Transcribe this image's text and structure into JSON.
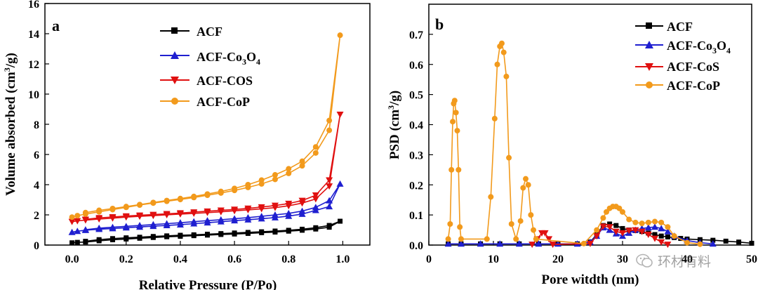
{
  "chart_data": [
    {
      "type": "line",
      "panel_label": "a",
      "xlabel": "Relative Pressure (P/Po)",
      "ylabel": "Volume absorbed (cm³/g)",
      "xlim": [
        -0.1,
        1.1
      ],
      "ylim": [
        0,
        16
      ],
      "xticks": [
        0.0,
        0.2,
        0.4,
        0.6,
        0.8,
        1.0
      ],
      "xtick_labels": [
        "0.0",
        "0.2",
        "0.4",
        "0.6",
        "0.8",
        "1.0"
      ],
      "yticks": [
        0,
        2,
        4,
        6,
        8,
        10,
        12,
        14,
        16
      ],
      "ytick_labels": [
        "0",
        "2",
        "4",
        "6",
        "8",
        "10",
        "12",
        "14",
        "16"
      ],
      "legend": [
        "ACF",
        "ACF-Co₃O₄",
        "ACF-COS",
        "ACF-CoP"
      ],
      "series": [
        {
          "name": "ACF",
          "marker": "square",
          "color": "#000000",
          "x": [
            0.0,
            0.02,
            0.05,
            0.1,
            0.15,
            0.2,
            0.25,
            0.3,
            0.35,
            0.4,
            0.45,
            0.5,
            0.55,
            0.6,
            0.65,
            0.7,
            0.75,
            0.8,
            0.85,
            0.9,
            0.95,
            0.99,
            0.95,
            0.9,
            0.85,
            0.8,
            0.75,
            0.7,
            0.65,
            0.6,
            0.55,
            0.5,
            0.45,
            0.4,
            0.35,
            0.3,
            0.25,
            0.2,
            0.15,
            0.1,
            0.05
          ],
          "y": [
            0.15,
            0.18,
            0.2,
            0.28,
            0.35,
            0.4,
            0.45,
            0.5,
            0.55,
            0.58,
            0.62,
            0.66,
            0.7,
            0.73,
            0.77,
            0.82,
            0.86,
            0.92,
            0.98,
            1.06,
            1.18,
            1.58,
            1.3,
            1.15,
            1.05,
            0.98,
            0.93,
            0.88,
            0.84,
            0.8,
            0.76,
            0.72,
            0.68,
            0.65,
            0.61,
            0.57,
            0.52,
            0.48,
            0.43,
            0.36,
            0.25
          ]
        },
        {
          "name": "ACF-Co₃O₄",
          "marker": "triangle-up",
          "color": "#1f1fd0",
          "x": [
            0.0,
            0.02,
            0.05,
            0.1,
            0.15,
            0.2,
            0.25,
            0.3,
            0.35,
            0.4,
            0.45,
            0.5,
            0.55,
            0.6,
            0.65,
            0.7,
            0.75,
            0.8,
            0.85,
            0.9,
            0.95,
            0.99,
            0.95,
            0.9,
            0.85,
            0.8,
            0.75,
            0.7,
            0.65,
            0.6,
            0.55,
            0.5,
            0.45,
            0.4,
            0.35,
            0.3,
            0.25,
            0.2,
            0.15,
            0.1,
            0.05
          ],
          "y": [
            0.85,
            0.92,
            0.98,
            1.05,
            1.1,
            1.15,
            1.2,
            1.25,
            1.3,
            1.35,
            1.42,
            1.48,
            1.55,
            1.62,
            1.68,
            1.75,
            1.82,
            1.92,
            2.05,
            2.3,
            2.55,
            4.05,
            2.95,
            2.5,
            2.25,
            2.1,
            2.0,
            1.9,
            1.82,
            1.75,
            1.68,
            1.62,
            1.55,
            1.48,
            1.42,
            1.36,
            1.3,
            1.24,
            1.18,
            1.12,
            1.02
          ]
        },
        {
          "name": "ACF-COS",
          "marker": "triangle-down",
          "color": "#e01010",
          "x": [
            0.0,
            0.02,
            0.05,
            0.1,
            0.15,
            0.2,
            0.25,
            0.3,
            0.35,
            0.4,
            0.45,
            0.5,
            0.55,
            0.6,
            0.65,
            0.7,
            0.75,
            0.8,
            0.85,
            0.9,
            0.95,
            0.99,
            0.95,
            0.9,
            0.85,
            0.8,
            0.75,
            0.7,
            0.65,
            0.6,
            0.55,
            0.5,
            0.45,
            0.4,
            0.35,
            0.3,
            0.25,
            0.2,
            0.15,
            0.1,
            0.05
          ],
          "y": [
            1.55,
            1.6,
            1.65,
            1.72,
            1.78,
            1.85,
            1.9,
            1.95,
            2.0,
            2.05,
            2.1,
            2.15,
            2.2,
            2.27,
            2.33,
            2.4,
            2.48,
            2.6,
            2.78,
            3.05,
            3.9,
            8.65,
            4.3,
            3.3,
            2.95,
            2.75,
            2.62,
            2.52,
            2.43,
            2.36,
            2.3,
            2.24,
            2.18,
            2.12,
            2.07,
            2.02,
            1.97,
            1.92,
            1.86,
            1.8,
            1.7
          ]
        },
        {
          "name": "ACF-CoP",
          "marker": "circle",
          "color": "#f29a1c",
          "x": [
            0.0,
            0.02,
            0.05,
            0.1,
            0.15,
            0.2,
            0.25,
            0.3,
            0.35,
            0.4,
            0.45,
            0.5,
            0.55,
            0.6,
            0.65,
            0.7,
            0.75,
            0.8,
            0.85,
            0.9,
            0.95,
            0.99,
            0.95,
            0.9,
            0.85,
            0.8,
            0.75,
            0.7,
            0.65,
            0.6,
            0.55,
            0.5,
            0.45,
            0.4,
            0.35,
            0.3,
            0.25,
            0.2,
            0.15,
            0.1,
            0.05
          ],
          "y": [
            1.85,
            1.95,
            2.05,
            2.2,
            2.35,
            2.5,
            2.65,
            2.78,
            2.9,
            3.02,
            3.15,
            3.3,
            3.45,
            3.62,
            3.82,
            4.05,
            4.35,
            4.75,
            5.25,
            6.1,
            7.6,
            13.9,
            8.25,
            6.5,
            5.55,
            5.05,
            4.65,
            4.3,
            4.0,
            3.75,
            3.55,
            3.38,
            3.22,
            3.08,
            2.95,
            2.82,
            2.68,
            2.55,
            2.42,
            2.3,
            2.15
          ]
        }
      ]
    },
    {
      "type": "line",
      "panel_label": "b",
      "xlabel": "Pore witdth (nm)",
      "ylabel": "PSD (cm³/g)",
      "xlim": [
        0,
        50
      ],
      "ylim": [
        0,
        0.8
      ],
      "xticks": [
        0,
        10,
        20,
        30,
        40,
        50
      ],
      "xtick_labels": [
        "0",
        "10",
        "20",
        "30",
        "40",
        "50"
      ],
      "yticks": [
        0.0,
        0.1,
        0.2,
        0.3,
        0.4,
        0.5,
        0.6,
        0.7
      ],
      "ytick_labels": [
        "0.0",
        "0.1",
        "0.2",
        "0.3",
        "0.4",
        "0.5",
        "0.6",
        "0.7"
      ],
      "legend": [
        "ACF",
        "ACF-Co₃O₄",
        "ACF-CoS",
        "ACF-CoP"
      ],
      "series": [
        {
          "name": "ACF",
          "marker": "square",
          "color": "#000000",
          "x": [
            3,
            5,
            8,
            11,
            14,
            17,
            20,
            23,
            25,
            26,
            27,
            28,
            29,
            30,
            31,
            32,
            33,
            34,
            35,
            36,
            37,
            38,
            39,
            40,
            42,
            44,
            46,
            48,
            50
          ],
          "y": [
            0.004,
            0.004,
            0.004,
            0.004,
            0.004,
            0.004,
            0.004,
            0.004,
            0.01,
            0.035,
            0.065,
            0.07,
            0.065,
            0.055,
            0.05,
            0.048,
            0.045,
            0.04,
            0.035,
            0.03,
            0.027,
            0.025,
            0.022,
            0.02,
            0.018,
            0.016,
            0.013,
            0.01,
            0.006
          ]
        },
        {
          "name": "ACF-Co₃O₄",
          "marker": "triangle-up",
          "color": "#1f1fd0",
          "x": [
            3,
            5,
            8,
            11,
            14,
            17,
            20,
            23,
            25,
            26,
            27,
            28,
            29,
            30,
            31,
            32,
            33,
            34,
            35,
            36,
            37,
            38,
            40,
            42,
            44
          ],
          "y": [
            0.004,
            0.004,
            0.004,
            0.004,
            0.004,
            0.004,
            0.004,
            0.004,
            0.01,
            0.03,
            0.058,
            0.05,
            0.038,
            0.03,
            0.04,
            0.05,
            0.055,
            0.058,
            0.06,
            0.055,
            0.045,
            0.03,
            0.015,
            0.008,
            0.004
          ]
        },
        {
          "name": "ACF-CoS",
          "marker": "triangle-down",
          "color": "#e01010",
          "x": [
            16,
            16.8,
            17.5,
            18,
            18.6,
            19.2,
            25,
            26,
            27,
            28,
            29,
            30,
            31,
            32,
            33,
            34,
            35,
            36,
            37
          ],
          "y": [
            0.002,
            0.02,
            0.04,
            0.04,
            0.02,
            0.002,
            0.005,
            0.03,
            0.062,
            0.06,
            0.045,
            0.04,
            0.048,
            0.05,
            0.045,
            0.035,
            0.022,
            0.01,
            0.002
          ]
        },
        {
          "name": "ACF-CoP",
          "marker": "circle",
          "color": "#f29a1c",
          "x": [
            3,
            3.3,
            3.5,
            3.7,
            3.85,
            4.0,
            4.2,
            4.4,
            4.6,
            4.8,
            5.0,
            9.0,
            9.6,
            10.2,
            10.6,
            11.0,
            11.3,
            11.6,
            12.0,
            12.4,
            12.8,
            13.5,
            14.2,
            14.6,
            15.0,
            15.4,
            15.8,
            16.2,
            16.6,
            24,
            26,
            27,
            27.5,
            28,
            28.5,
            29,
            29.5,
            30,
            31,
            32,
            33,
            34,
            35,
            36,
            37,
            38,
            40,
            42
          ],
          "y": [
            0.02,
            0.07,
            0.25,
            0.41,
            0.47,
            0.48,
            0.44,
            0.38,
            0.25,
            0.06,
            0.02,
            0.02,
            0.16,
            0.42,
            0.6,
            0.66,
            0.67,
            0.64,
            0.56,
            0.29,
            0.07,
            0.02,
            0.08,
            0.19,
            0.22,
            0.2,
            0.1,
            0.05,
            0.02,
            0.005,
            0.05,
            0.09,
            0.11,
            0.122,
            0.128,
            0.128,
            0.122,
            0.11,
            0.085,
            0.075,
            0.072,
            0.075,
            0.078,
            0.075,
            0.06,
            0.03,
            0.008,
            0.003
          ]
        }
      ]
    }
  ],
  "watermark": {
    "text": "环材有料"
  }
}
